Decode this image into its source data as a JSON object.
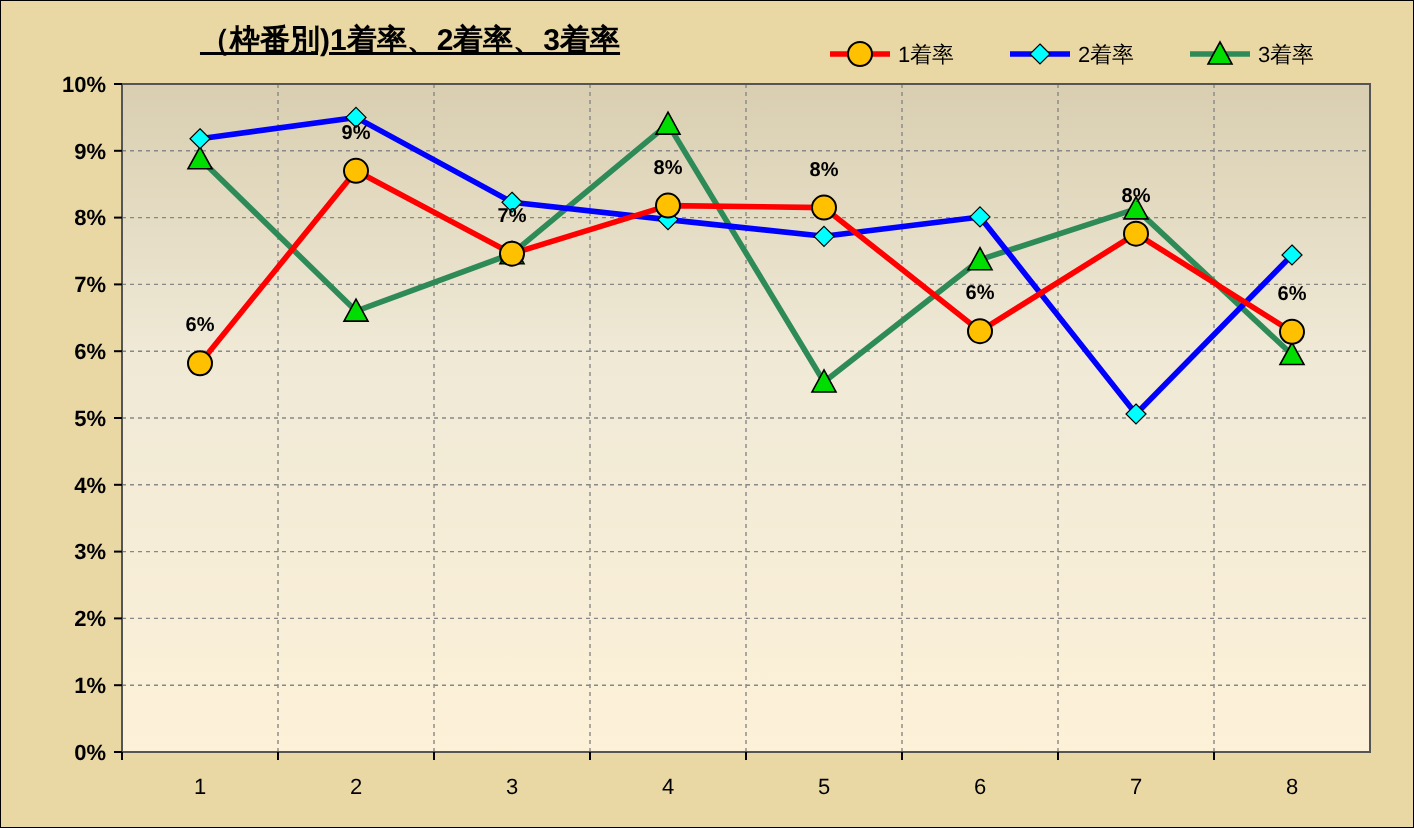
{
  "chart_data": {
    "type": "line",
    "title": "（枠番別)1着率、2着率、3着率",
    "categories": [
      "1",
      "2",
      "3",
      "4",
      "5",
      "6",
      "7",
      "8"
    ],
    "series": [
      {
        "name": "3着率",
        "color": "#2e8b57",
        "marker": "triangle",
        "values": [
          8.88,
          6.6,
          7.46,
          9.4,
          5.54,
          7.37,
          8.13,
          5.95
        ]
      },
      {
        "name": "2着率",
        "color": "#0000ff",
        "marker": "diamond",
        "values": [
          9.18,
          9.5,
          8.23,
          7.97,
          7.72,
          8.01,
          5.06,
          7.44
        ]
      },
      {
        "name": "1着率",
        "color": "#ff0000",
        "marker": "circle",
        "values": [
          5.82,
          8.7,
          7.46,
          8.18,
          8.15,
          6.3,
          7.76,
          6.29
        ],
        "value_labels": [
          "6%",
          "9%",
          "7%",
          "8%",
          "8%",
          "6%",
          "8%",
          "6%"
        ]
      }
    ],
    "ylim": [
      0,
      10
    ],
    "yticks": [
      {
        "value": 0,
        "label": "0%"
      },
      {
        "value": 1,
        "label": "1%"
      },
      {
        "value": 2,
        "label": "2%"
      },
      {
        "value": 3,
        "label": "3%"
      },
      {
        "value": 4,
        "label": "4%"
      },
      {
        "value": 5,
        "label": "5%"
      },
      {
        "value": 6,
        "label": "6%"
      },
      {
        "value": 7,
        "label": "7%"
      },
      {
        "value": 8,
        "label": "8%"
      },
      {
        "value": 9,
        "label": "9%"
      },
      {
        "value": 10,
        "label": "10%"
      }
    ],
    "grid": true,
    "legend": "top right"
  }
}
